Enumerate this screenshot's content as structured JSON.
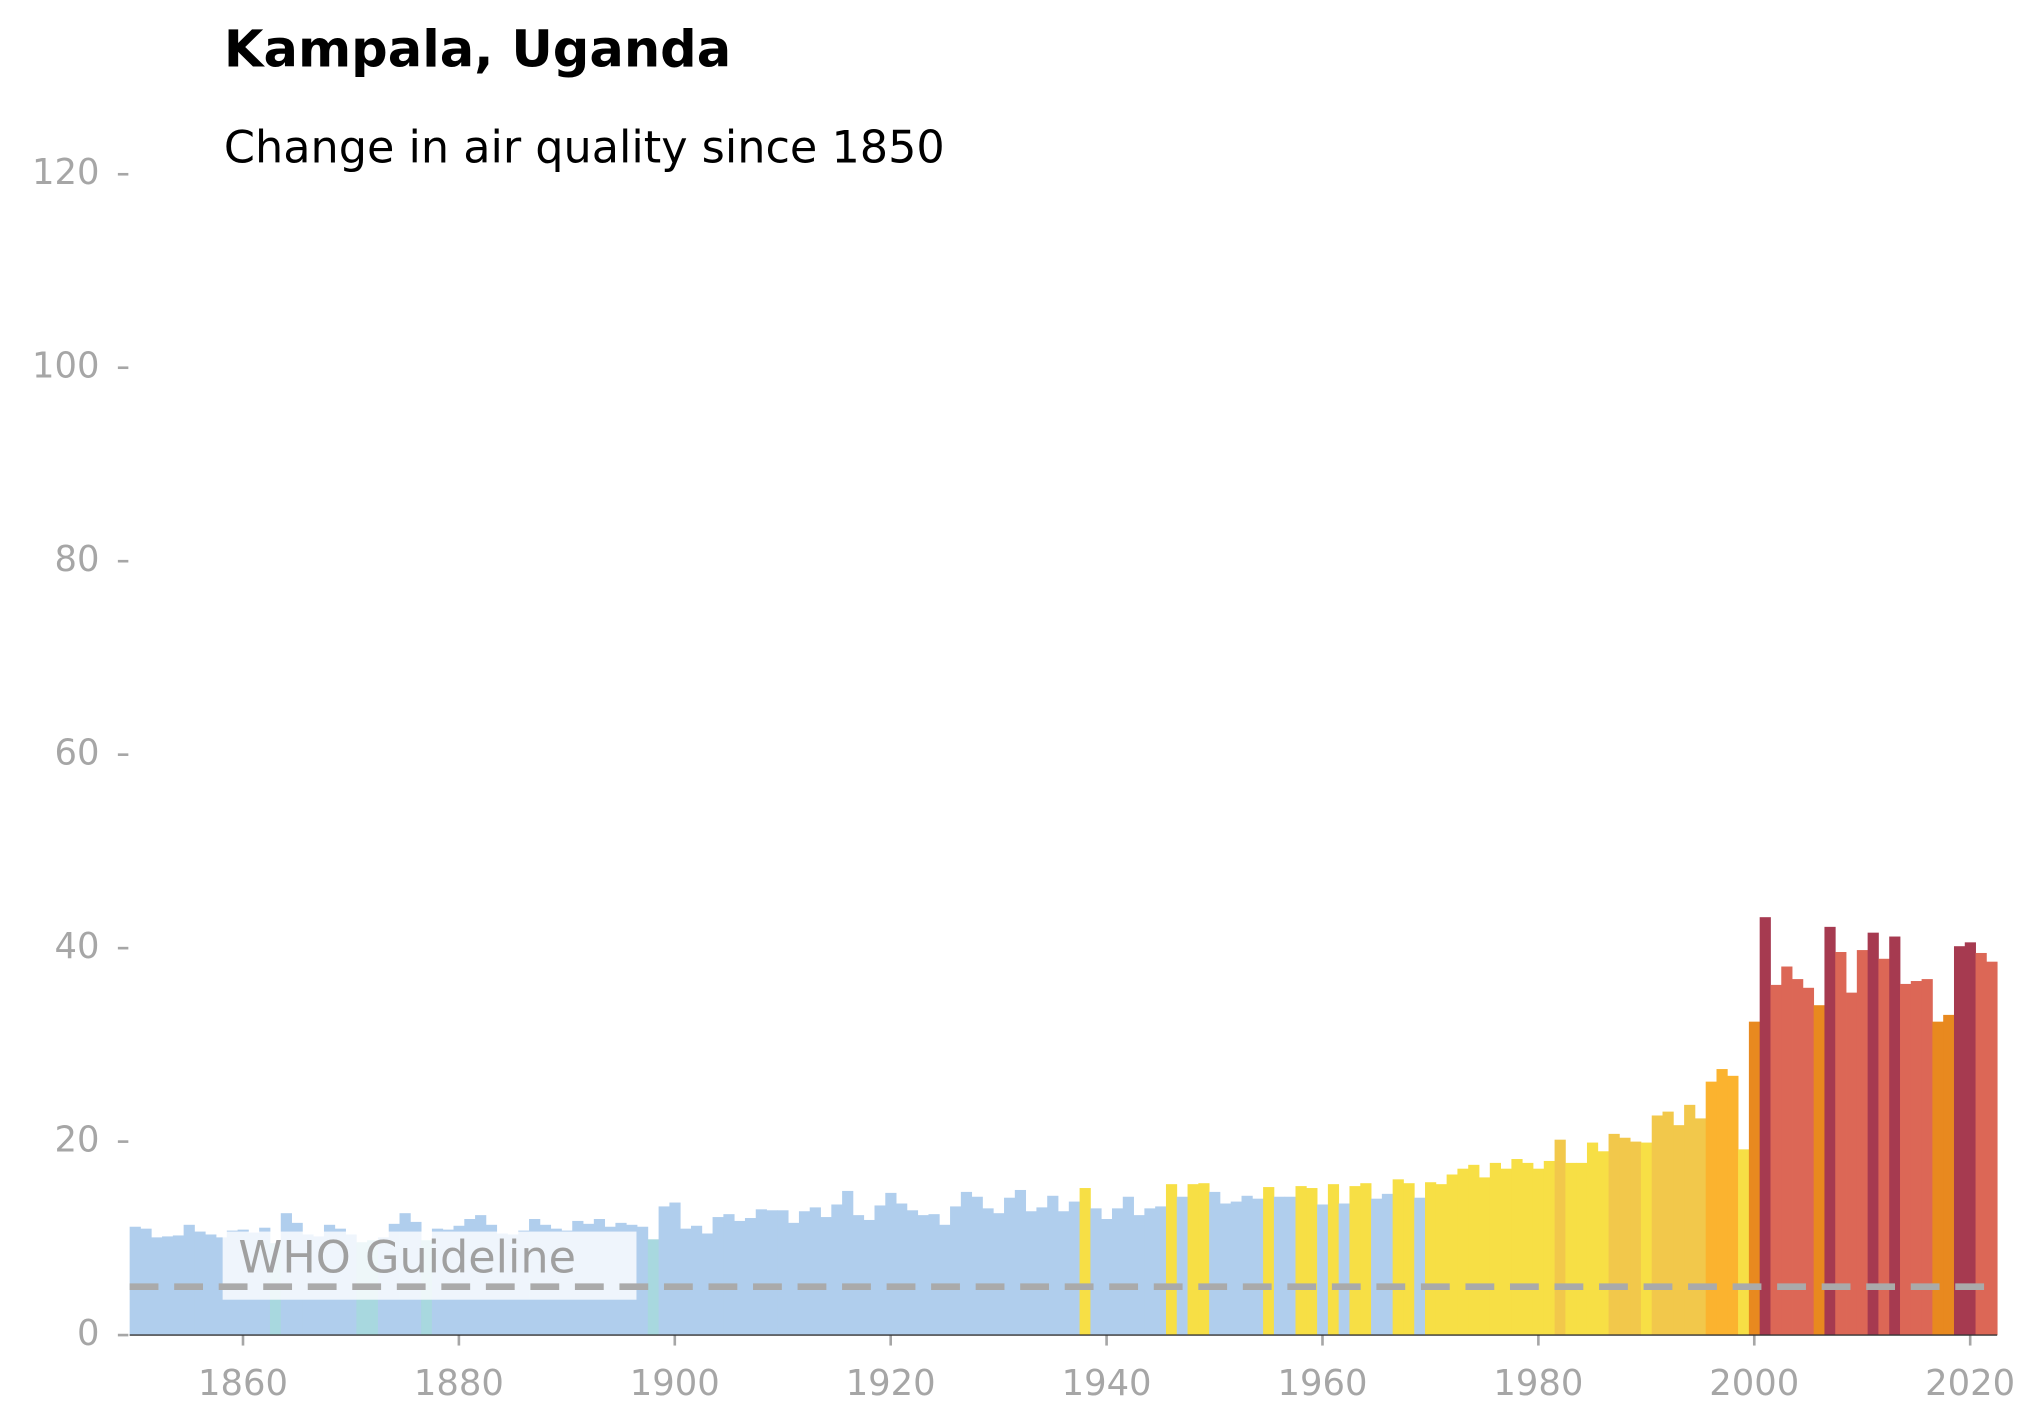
{
  "chart_data": {
    "type": "bar",
    "title": "Kampala, Uganda",
    "subtitle": "Change in air quality since 1850",
    "x": [
      1850,
      1851,
      1852,
      1853,
      1854,
      1855,
      1856,
      1857,
      1858,
      1859,
      1860,
      1861,
      1862,
      1863,
      1864,
      1865,
      1866,
      1867,
      1868,
      1869,
      1870,
      1871,
      1872,
      1873,
      1874,
      1875,
      1876,
      1877,
      1878,
      1879,
      1880,
      1881,
      1882,
      1883,
      1884,
      1885,
      1886,
      1887,
      1888,
      1889,
      1890,
      1891,
      1892,
      1893,
      1894,
      1895,
      1896,
      1897,
      1898,
      1899,
      1900,
      1901,
      1902,
      1903,
      1904,
      1905,
      1906,
      1907,
      1908,
      1909,
      1910,
      1911,
      1912,
      1913,
      1914,
      1915,
      1916,
      1917,
      1918,
      1919,
      1920,
      1921,
      1922,
      1923,
      1924,
      1925,
      1926,
      1927,
      1928,
      1929,
      1930,
      1931,
      1932,
      1933,
      1934,
      1935,
      1936,
      1937,
      1938,
      1939,
      1940,
      1941,
      1942,
      1943,
      1944,
      1945,
      1946,
      1947,
      1948,
      1949,
      1950,
      1951,
      1952,
      1953,
      1954,
      1955,
      1956,
      1957,
      1958,
      1959,
      1960,
      1961,
      1962,
      1963,
      1964,
      1965,
      1966,
      1967,
      1968,
      1969,
      1970,
      1971,
      1972,
      1973,
      1974,
      1975,
      1976,
      1977,
      1978,
      1979,
      1980,
      1981,
      1982,
      1983,
      1984,
      1985,
      1986,
      1987,
      1988,
      1989,
      1990,
      1991,
      1992,
      1993,
      1994,
      1995,
      1996,
      1997,
      1998,
      1999,
      2000,
      2001,
      2002,
      2003,
      2004,
      2005,
      2006,
      2007,
      2008,
      2009,
      2010,
      2011,
      2012,
      2013,
      2014,
      2015,
      2016,
      2017,
      2018,
      2019,
      2020,
      2021,
      2022
    ],
    "values": [
      11.2,
      11.0,
      10.1,
      10.2,
      10.3,
      11.4,
      10.7,
      10.4,
      10.1,
      10.8,
      10.9,
      10.6,
      11.1,
      9.5,
      12.6,
      11.6,
      10.4,
      10.2,
      11.4,
      11.0,
      10.4,
      9.6,
      9.8,
      10.1,
      11.5,
      12.6,
      11.7,
      9.8,
      11.0,
      10.9,
      11.3,
      12.0,
      12.4,
      11.4,
      10.5,
      10.4,
      10.8,
      12.0,
      11.4,
      11.0,
      10.8,
      11.8,
      11.5,
      12.0,
      11.2,
      11.6,
      11.4,
      11.2,
      9.9,
      13.3,
      13.7,
      11.0,
      11.3,
      10.5,
      12.2,
      12.5,
      11.8,
      12.1,
      13.0,
      12.9,
      12.9,
      11.6,
      12.8,
      13.2,
      12.2,
      13.5,
      14.9,
      12.4,
      11.9,
      13.4,
      14.7,
      13.6,
      12.9,
      12.4,
      12.5,
      11.4,
      13.3,
      14.8,
      14.3,
      13.1,
      12.6,
      14.2,
      15.0,
      12.8,
      13.2,
      14.4,
      12.8,
      13.8,
      15.2,
      13.1,
      12.0,
      13.1,
      14.3,
      12.4,
      13.1,
      13.3,
      15.6,
      14.3,
      15.6,
      15.7,
      14.8,
      13.6,
      13.8,
      14.4,
      14.1,
      15.3,
      14.3,
      14.3,
      15.4,
      15.2,
      13.5,
      15.6,
      13.6,
      15.4,
      15.7,
      14.1,
      14.6,
      16.1,
      15.7,
      14.2,
      15.8,
      15.6,
      16.6,
      17.2,
      17.6,
      16.3,
      17.8,
      17.2,
      18.2,
      17.8,
      17.2,
      18.0,
      20.2,
      17.8,
      17.8,
      19.9,
      19.0,
      20.8,
      20.4,
      20.0,
      19.9,
      22.7,
      23.1,
      21.7,
      23.8,
      22.4,
      26.2,
      27.5,
      26.8,
      19.2,
      32.4,
      43.2,
      36.2,
      38.1,
      36.8,
      35.9,
      34.1,
      42.2,
      39.6,
      35.4,
      39.8,
      41.6,
      38.9,
      41.2,
      36.3,
      36.6,
      36.8,
      32.4,
      33.1,
      40.2,
      40.6,
      39.5,
      38.6
    ],
    "colors": [
      "#b0ceed",
      "#b0ceed",
      "#b0ceed",
      "#b0ceed",
      "#b0ceed",
      "#b0ceed",
      "#b0ceed",
      "#b0ceed",
      "#b0ceed",
      "#b0ceed",
      "#b0ceed",
      "#b0ceed",
      "#b0ceed",
      "#a8d8df",
      "#b0ceed",
      "#b0ceed",
      "#b0ceed",
      "#b0ceed",
      "#b0ceed",
      "#b0ceed",
      "#b0ceed",
      "#a8d8df",
      "#a8d8df",
      "#b0ceed",
      "#b0ceed",
      "#b0ceed",
      "#b0ceed",
      "#a8d8df",
      "#b0ceed",
      "#b0ceed",
      "#b0ceed",
      "#b0ceed",
      "#b0ceed",
      "#b0ceed",
      "#b0ceed",
      "#b0ceed",
      "#b0ceed",
      "#b0ceed",
      "#b0ceed",
      "#b0ceed",
      "#b0ceed",
      "#b0ceed",
      "#b0ceed",
      "#b0ceed",
      "#b0ceed",
      "#b0ceed",
      "#b0ceed",
      "#b0ceed",
      "#a8d8df",
      "#b0ceed",
      "#b0ceed",
      "#b0ceed",
      "#b0ceed",
      "#b0ceed",
      "#b0ceed",
      "#b0ceed",
      "#b0ceed",
      "#b0ceed",
      "#b0ceed",
      "#b0ceed",
      "#b0ceed",
      "#b0ceed",
      "#b0ceed",
      "#b0ceed",
      "#b0ceed",
      "#b0ceed",
      "#b0ceed",
      "#b0ceed",
      "#b0ceed",
      "#b0ceed",
      "#b0ceed",
      "#b0ceed",
      "#b0ceed",
      "#b0ceed",
      "#b0ceed",
      "#b0ceed",
      "#b0ceed",
      "#b0ceed",
      "#b0ceed",
      "#b0ceed",
      "#b0ceed",
      "#b0ceed",
      "#b0ceed",
      "#b0ceed",
      "#b0ceed",
      "#b0ceed",
      "#b0ceed",
      "#b0ceed",
      "#f7df45",
      "#b0ceed",
      "#b0ceed",
      "#b0ceed",
      "#b0ceed",
      "#b0ceed",
      "#b0ceed",
      "#b0ceed",
      "#f7df45",
      "#b0ceed",
      "#f7df45",
      "#f7df45",
      "#b0ceed",
      "#b0ceed",
      "#b0ceed",
      "#b0ceed",
      "#b0ceed",
      "#f7df45",
      "#b0ceed",
      "#b0ceed",
      "#f7df45",
      "#f7df45",
      "#b0ceed",
      "#f7df45",
      "#b0ceed",
      "#f7df45",
      "#f7df45",
      "#b0ceed",
      "#b0ceed",
      "#f7df45",
      "#f7df45",
      "#b0ceed",
      "#f7df45",
      "#f7df45",
      "#f7df45",
      "#f7df45",
      "#f7df45",
      "#f7df45",
      "#f7df45",
      "#f7df45",
      "#f7df45",
      "#f7df45",
      "#f7df45",
      "#f7df45",
      "#f2c84b",
      "#f7df45",
      "#f7df45",
      "#f7df45",
      "#f7df45",
      "#f2c84b",
      "#f2c84b",
      "#f2c84b",
      "#f7df45",
      "#f2c84b",
      "#f2c84b",
      "#f2c84b",
      "#f2c84b",
      "#f2c84b",
      "#fbb32f",
      "#fbb32f",
      "#fbb32f",
      "#f7df45",
      "#e8891f",
      "#a63a50",
      "#dc6756",
      "#dc6756",
      "#dc6756",
      "#dc6756",
      "#e8891f",
      "#a63a50",
      "#dc6756",
      "#dc6756",
      "#dc6756",
      "#a63a50",
      "#dc6756",
      "#a63a50",
      "#dc6756",
      "#dc6756",
      "#dc6756",
      "#e8891f",
      "#e8891f",
      "#a63a50",
      "#a63a50",
      "#dc6756",
      "#dc6756"
    ],
    "guideline": {
      "value": 5,
      "label": "WHO Guideline"
    },
    "xlim": [
      1849.5,
      2022.5
    ],
    "xticks": [
      1860,
      1880,
      1900,
      1920,
      1940,
      1960,
      1980,
      2000,
      2020
    ],
    "ylim": [
      0,
      120
    ],
    "yticks": [
      0,
      20,
      40,
      60,
      80,
      100,
      120
    ]
  }
}
